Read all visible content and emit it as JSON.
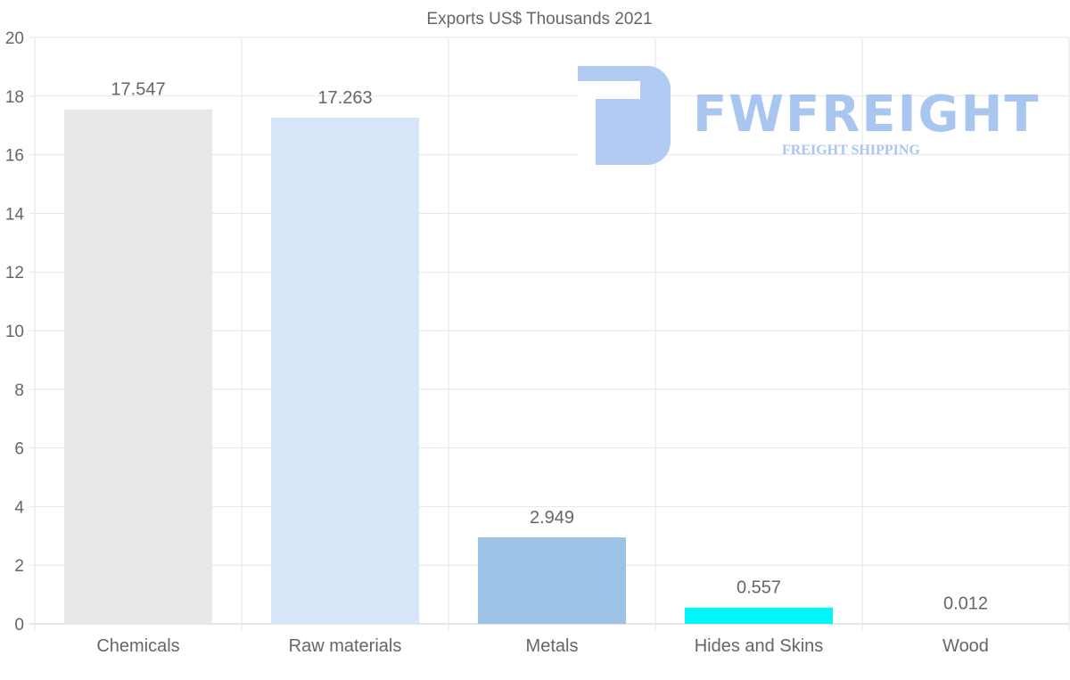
{
  "chart_data": {
    "type": "bar",
    "title": "Exports US$ Thousands 2021",
    "xlabel": "",
    "ylabel": "",
    "ylim": [
      0,
      20
    ],
    "yticks": [
      0,
      2,
      4,
      6,
      8,
      10,
      12,
      14,
      16,
      18,
      20
    ],
    "categories": [
      "Chemicals",
      "Raw materials",
      "Metals",
      "Hides and Skins",
      "Wood"
    ],
    "values": [
      17.547,
      17.263,
      2.949,
      0.557,
      0.012
    ],
    "value_labels": [
      "17.547",
      "17.263",
      "2.949",
      "0.557",
      "0.012"
    ],
    "colors": [
      "#e8e8e8",
      "#d6e6f8",
      "#9cc3e6",
      "#00f7f7",
      "#cccccc"
    ],
    "grid": true,
    "legend": "none"
  },
  "watermark": {
    "brand": "FWFREIGHT",
    "tagline": "FREIGHT SHIPPING"
  }
}
